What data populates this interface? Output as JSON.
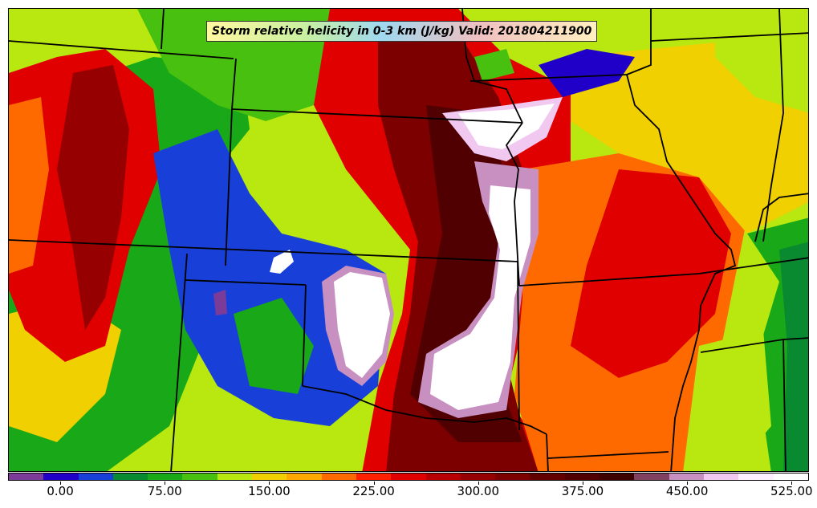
{
  "title": "Storm relative helicity in 0-3 km (J/kg) Valid: 201804211900",
  "colorbar": {
    "colors": [
      "#7a3c98",
      "#2000c8",
      "#1840d8",
      "#0a8a30",
      "#18a818",
      "#48c010",
      "#b8e810",
      "#f0d000",
      "#ffa800",
      "#ff6a00",
      "#ff2000",
      "#e00000",
      "#b80000",
      "#960000",
      "#7c0000",
      "#620000",
      "#500000",
      "#3c0000",
      "#804060",
      "#c890c0",
      "#f0c8f0",
      "#fff0ff",
      "#ffffff"
    ],
    "tick_labels": [
      "0.00",
      "75.00",
      "150.00",
      "225.00",
      "300.00",
      "375.00",
      "450.00",
      "525.00"
    ],
    "tick_values": [
      0,
      75,
      150,
      225,
      300,
      375,
      450,
      525
    ],
    "range": [
      -37.5,
      537.5
    ]
  }
}
